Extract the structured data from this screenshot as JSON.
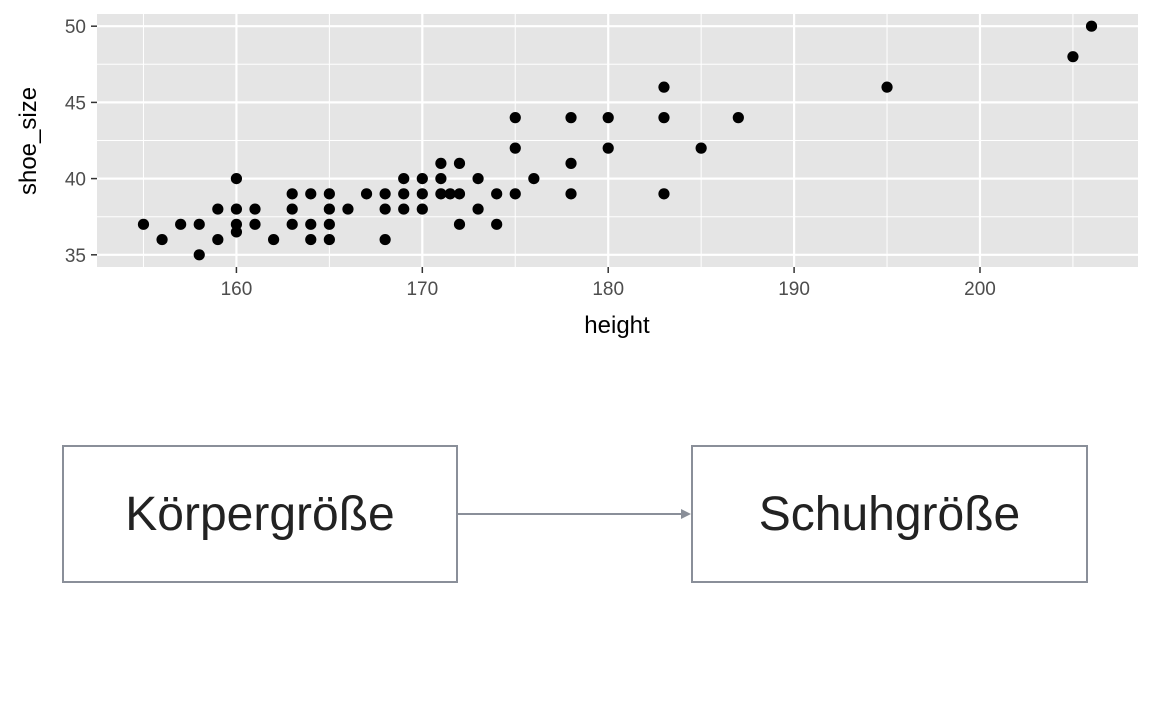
{
  "chart_data": {
    "type": "scatter",
    "xlabel": "height",
    "ylabel": "shoe_size",
    "xlim": [
      152.5,
      208.5
    ],
    "ylim": [
      34.2,
      50.8
    ],
    "xticks": [
      160,
      170,
      180,
      190,
      200
    ],
    "yticks": [
      35,
      40,
      45,
      50
    ],
    "grid": true,
    "colors": {
      "panel": "#e5e5e5",
      "grid": "#ffffff",
      "point": "#000000"
    },
    "points": [
      [
        155,
        37
      ],
      [
        156,
        36
      ],
      [
        157,
        37
      ],
      [
        158,
        35
      ],
      [
        158,
        37
      ],
      [
        159,
        36
      ],
      [
        159,
        38
      ],
      [
        160,
        36.5
      ],
      [
        160,
        37
      ],
      [
        160,
        38
      ],
      [
        160,
        40
      ],
      [
        161,
        37
      ],
      [
        161,
        38
      ],
      [
        162,
        36
      ],
      [
        163,
        37
      ],
      [
        163,
        38
      ],
      [
        163,
        39
      ],
      [
        164,
        36
      ],
      [
        164,
        37
      ],
      [
        164,
        39
      ],
      [
        165,
        36
      ],
      [
        165,
        37
      ],
      [
        165,
        38
      ],
      [
        165,
        39
      ],
      [
        166,
        38
      ],
      [
        167,
        39
      ],
      [
        168,
        36
      ],
      [
        168,
        38
      ],
      [
        168,
        39
      ],
      [
        169,
        38
      ],
      [
        169,
        39
      ],
      [
        169,
        40
      ],
      [
        170,
        38
      ],
      [
        170,
        39
      ],
      [
        170,
        40
      ],
      [
        171,
        39
      ],
      [
        171,
        40
      ],
      [
        171,
        41
      ],
      [
        171.5,
        39
      ],
      [
        172,
        37
      ],
      [
        172,
        39
      ],
      [
        172,
        41
      ],
      [
        173,
        38
      ],
      [
        173,
        40
      ],
      [
        174,
        37
      ],
      [
        174,
        39
      ],
      [
        175,
        39
      ],
      [
        175,
        42
      ],
      [
        175,
        44
      ],
      [
        176,
        40
      ],
      [
        178,
        39
      ],
      [
        178,
        41
      ],
      [
        178,
        44
      ],
      [
        180,
        42
      ],
      [
        180,
        44
      ],
      [
        183,
        39
      ],
      [
        183,
        44
      ],
      [
        183,
        46
      ],
      [
        185,
        42
      ],
      [
        187,
        44
      ],
      [
        195,
        46
      ],
      [
        205,
        48
      ],
      [
        206,
        50
      ]
    ]
  },
  "flow": {
    "left_box": "Körpergröße",
    "right_box": "Schuhgröße"
  }
}
